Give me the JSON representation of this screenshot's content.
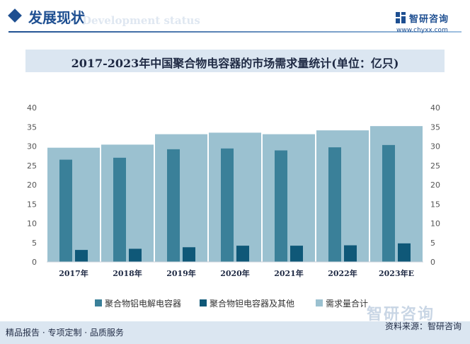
{
  "header": {
    "section_title": "发展现状",
    "section_subtitle": "Development status",
    "logo_name": "智研咨询",
    "logo_url": "www.chyxx.com"
  },
  "footer": {
    "tagline": "精品报告 · 专项定制 · 品质服务",
    "brand": "智研咨询",
    "source": "资料来源：智研咨询"
  },
  "colors": {
    "aluminum": "#3a8099",
    "tantalum": "#0f5878",
    "demand": "#9bc1d0",
    "accent": "#1e4f91"
  },
  "chart_data": {
    "type": "bar",
    "title": "2017-2023年中国聚合物电容器的市场需求量统计(单位：亿只)",
    "categories": [
      "2017年",
      "2018年",
      "2019年",
      "2020年",
      "2021年",
      "2022年",
      "2023年E"
    ],
    "ylim": [
      0,
      40
    ],
    "y_ticks": [
      0,
      5,
      10,
      15,
      20,
      25,
      30,
      35,
      40
    ],
    "right_axis_ticks": [
      0,
      5,
      10,
      15,
      20,
      25,
      30,
      35,
      40
    ],
    "grid": false,
    "legend_position": "bottom",
    "series": [
      {
        "name": "聚合物铝电解电容器",
        "values": [
          26.5,
          27.0,
          29.2,
          29.4,
          28.9,
          29.7,
          30.3
        ]
      },
      {
        "name": "聚合物钽电容器及其他",
        "values": [
          3.1,
          3.4,
          3.8,
          4.2,
          4.2,
          4.3,
          4.8
        ]
      },
      {
        "name": "需求量合计",
        "values": [
          29.6,
          30.4,
          33.1,
          33.5,
          33.1,
          34.1,
          35.2
        ]
      }
    ]
  }
}
